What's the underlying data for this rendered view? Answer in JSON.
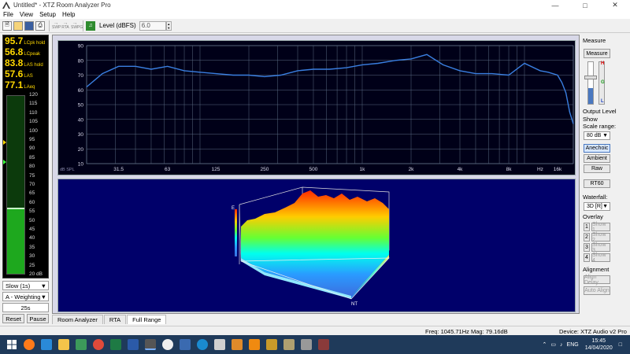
{
  "window": {
    "title": "Untitled* - XTZ Room Analyzer Pro"
  },
  "menu": [
    "File",
    "View",
    "Setup",
    "Help"
  ],
  "toolbar": {
    "small_labels": [
      "SWP",
      "RTA",
      "SWPG"
    ],
    "level_label": "Level (dBFS)",
    "level_value": "6.0"
  },
  "meter": {
    "readouts": [
      {
        "value": "95.7",
        "label": "LCpk hold"
      },
      {
        "value": "56.8",
        "label": "LCpeak"
      },
      {
        "value": "83.8",
        "label": "LAS hold"
      },
      {
        "value": "57.6",
        "label": "LAS"
      },
      {
        "value": "77.1",
        "label": "LAeq"
      }
    ],
    "scale": [
      "120",
      "115",
      "110",
      "105",
      "100",
      "95",
      "90",
      "85",
      "80",
      "75",
      "70",
      "65",
      "60",
      "55",
      "50",
      "45",
      "40",
      "35",
      "30",
      "25",
      "20 dB"
    ],
    "scale_min": 20,
    "scale_max": 120,
    "level": 57,
    "hold": 57.6,
    "markers": [
      94,
      83
    ]
  },
  "left_controls": {
    "speed": "Slow (1s)",
    "weighting": "A - Weighting",
    "duration": "25s",
    "reset": "Reset",
    "pause": "Pause"
  },
  "freq_plot": {
    "y_ticks": [
      "90",
      "80",
      "70",
      "60",
      "50",
      "40",
      "30",
      "20",
      "10"
    ],
    "x_ticks": [
      "31.5",
      "63",
      "125",
      "250",
      "500",
      "1k",
      "2k",
      "4k",
      "8k",
      "Hz",
      "16k"
    ],
    "corner_label": "dB SPL"
  },
  "chart_data": {
    "type": "line",
    "x": [
      20,
      25,
      31.5,
      40,
      50,
      63,
      80,
      100,
      125,
      160,
      200,
      250,
      315,
      400,
      500,
      630,
      800,
      1000,
      1250,
      1600,
      2000,
      2500,
      3150,
      4000,
      5000,
      6300,
      8000,
      10000,
      12500,
      14000,
      16000,
      17000,
      18000,
      19000,
      20000
    ],
    "values": [
      62,
      71,
      76,
      76,
      74,
      76,
      73,
      72,
      71,
      70,
      70,
      69,
      70,
      73,
      74,
      74,
      75,
      77,
      78,
      80,
      81,
      84,
      77,
      73,
      71,
      71,
      70,
      78,
      73,
      72,
      70,
      65,
      58,
      45,
      37
    ],
    "ylim": [
      10,
      90
    ],
    "xlim": [
      20,
      20000
    ],
    "x_scale": "log",
    "grid": true,
    "color": "#3a7fe0"
  },
  "waterfall": {
    "label_e": "E",
    "label_nt": "NT"
  },
  "right_panel": {
    "measure_header": "Measure",
    "measure_button": "Measure",
    "meter_labels": [
      "H",
      "G",
      "L"
    ],
    "output_level": "Output Level",
    "show": "Show",
    "scale_range_label": "Scale range:",
    "scale_range": "80 dB",
    "anechoic": "Anechoic",
    "ambient": "Ambient",
    "raw": "Raw",
    "rt60": "RT60",
    "waterfall_label": "Waterfall:",
    "waterfall_mode": "3D [R]",
    "overlay_label": "Overlay",
    "overlays": [
      {
        "num": "1",
        "label": "Show 1"
      },
      {
        "num": "2",
        "label": "Show 2"
      },
      {
        "num": "3",
        "label": "Show 3"
      },
      {
        "num": "4",
        "label": "Show 4"
      }
    ],
    "alignment_label": "Alignment",
    "align_delay": "Align Delay",
    "auto_align": "Auto Align"
  },
  "tabs": [
    "Room Analyzer",
    "RTA",
    "Full Range"
  ],
  "status": {
    "freq": "Freq: 1045.71Hz",
    "mag": "Mag: 79.16dB",
    "device": "Device: XTZ Audio v2 Pro"
  },
  "taskbar": {
    "icons": [
      "windows-start",
      "firefox",
      "app",
      "folder",
      "app",
      "chrome",
      "excel",
      "word",
      "xtz",
      "eac",
      "app",
      "app",
      "app",
      "app",
      "vlc",
      "nx",
      "app",
      "app",
      "app"
    ],
    "lang": "ENG",
    "time": "15:45",
    "date": "14/04/2020"
  }
}
